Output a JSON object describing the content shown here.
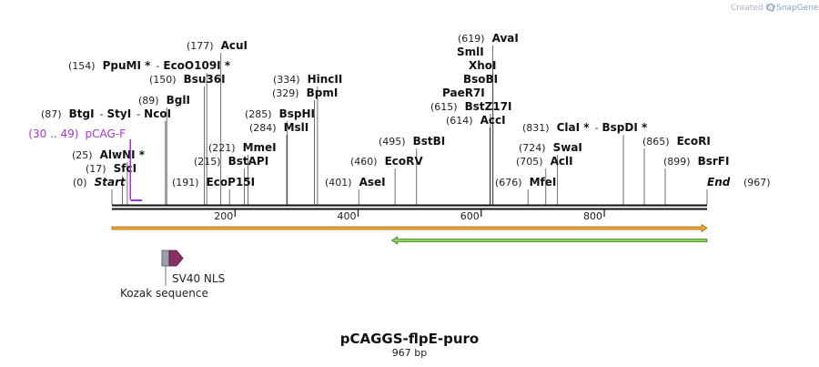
{
  "credit": {
    "prefix": "Created by",
    "brand": "SnapGene"
  },
  "plasmid": {
    "name": "pCAGGS-flpE-puro",
    "size_label": "967 bp",
    "length": 967
  },
  "axis": {
    "ticks": [
      200,
      400,
      600,
      800
    ]
  },
  "enzymes": [
    {
      "id": "start",
      "pos": 0,
      "pos_label": "(0)",
      "name": "Start",
      "italic": true
    },
    {
      "id": "sfci",
      "pos": 17,
      "pos_label": "(17)",
      "name": "SfcI"
    },
    {
      "id": "alwni",
      "pos": 25,
      "pos_label": "(25)",
      "name": "AlwNI *"
    },
    {
      "id": "btgi",
      "pos": 87,
      "pos_label": "(87)",
      "name": "BtgI",
      "extra": [
        "StyI",
        "NcoI"
      ]
    },
    {
      "id": "bgli",
      "pos": 89,
      "pos_label": "(89)",
      "name": "BglI"
    },
    {
      "id": "bsu36i",
      "pos": 150,
      "pos_label": "(150)",
      "name": "Bsu36I"
    },
    {
      "id": "ppumi",
      "pos": 154,
      "pos_label": "(154)",
      "name": "PpuMI *",
      "extra": [
        "EcoO109I *"
      ]
    },
    {
      "id": "acui",
      "pos": 177,
      "pos_label": "(177)",
      "name": "AcuI"
    },
    {
      "id": "ecop15i",
      "pos": 191,
      "pos_label": "(191)",
      "name": "EcoP15I"
    },
    {
      "id": "bstapi",
      "pos": 215,
      "pos_label": "(215)",
      "name": "BstAPI"
    },
    {
      "id": "mmei",
      "pos": 221,
      "pos_label": "(221)",
      "name": "MmeI"
    },
    {
      "id": "msli",
      "pos": 284,
      "pos_label": "(284)",
      "name": "MslI"
    },
    {
      "id": "bsphi",
      "pos": 285,
      "pos_label": "(285)",
      "name": "BspHI"
    },
    {
      "id": "bpmi",
      "pos": 329,
      "pos_label": "(329)",
      "name": "BpmI"
    },
    {
      "id": "hincii",
      "pos": 334,
      "pos_label": "(334)",
      "name": "HincII"
    },
    {
      "id": "asei",
      "pos": 401,
      "pos_label": "(401)",
      "name": "AseI"
    },
    {
      "id": "ecorv",
      "pos": 460,
      "pos_label": "(460)",
      "name": "EcoRV"
    },
    {
      "id": "bstbi",
      "pos": 495,
      "pos_label": "(495)",
      "name": "BstBI"
    },
    {
      "id": "mfei",
      "pos": 676,
      "pos_label": "(676)",
      "name": "MfeI"
    },
    {
      "id": "acli",
      "pos": 705,
      "pos_label": "(705)",
      "name": "AclI"
    },
    {
      "id": "swai",
      "pos": 724,
      "pos_label": "(724)",
      "name": "SwaI"
    },
    {
      "id": "clai",
      "pos": 831,
      "pos_label": "(831)",
      "name": "ClaI *",
      "extra": [
        "BspDI *"
      ]
    },
    {
      "id": "acci",
      "pos": 614,
      "pos_label": "(614)",
      "name": "AccI"
    },
    {
      "id": "bstz17i",
      "pos": 615,
      "pos_label": "(615)",
      "name": "BstZ17I"
    },
    {
      "id": "paer7i",
      "pos": 619,
      "pos_label": "",
      "name": "PaeR7I"
    },
    {
      "id": "bsobi",
      "pos": 619,
      "pos_label": "",
      "name": "BsoBI"
    },
    {
      "id": "xhoi",
      "pos": 619,
      "pos_label": "",
      "name": "XhoI"
    },
    {
      "id": "smli",
      "pos": 619,
      "pos_label": "",
      "name": "SmlI"
    },
    {
      "id": "avai",
      "pos": 619,
      "pos_label": "(619)",
      "name": "AvaI"
    },
    {
      "id": "ecori",
      "pos": 865,
      "pos_label": "(865)",
      "name": "EcoRI"
    },
    {
      "id": "bsrfi",
      "pos": 899,
      "pos_label": "(899)",
      "name": "BsrFI"
    },
    {
      "id": "end",
      "pos": 967,
      "pos_label": "(967)",
      "name": "End",
      "italic": true
    }
  ],
  "primer": {
    "range_label": "(30 .. 49)",
    "name": "pCAG-F",
    "start": 30,
    "end": 49,
    "color": "#a434d6"
  },
  "features": [
    {
      "id": "orange-feature",
      "start": 0,
      "end": 967,
      "direction": "forward",
      "color": "#f5a623",
      "edge": "#9a6a1a"
    },
    {
      "id": "green-feature",
      "start": 455,
      "end": 967,
      "direction": "reverse",
      "color": "#8fd45a",
      "edge": "#3f7a24"
    },
    {
      "id": "kozak",
      "label": "Kozak sequence",
      "start": 82,
      "end": 92,
      "color": "#9aa0ad"
    },
    {
      "id": "sv40-nls",
      "label": "SV40 NLS",
      "start": 93,
      "end": 114,
      "color": "#8b2f63"
    }
  ],
  "colors": {
    "backbone": "#000000",
    "tick": "#333333",
    "leader": "#555555"
  }
}
